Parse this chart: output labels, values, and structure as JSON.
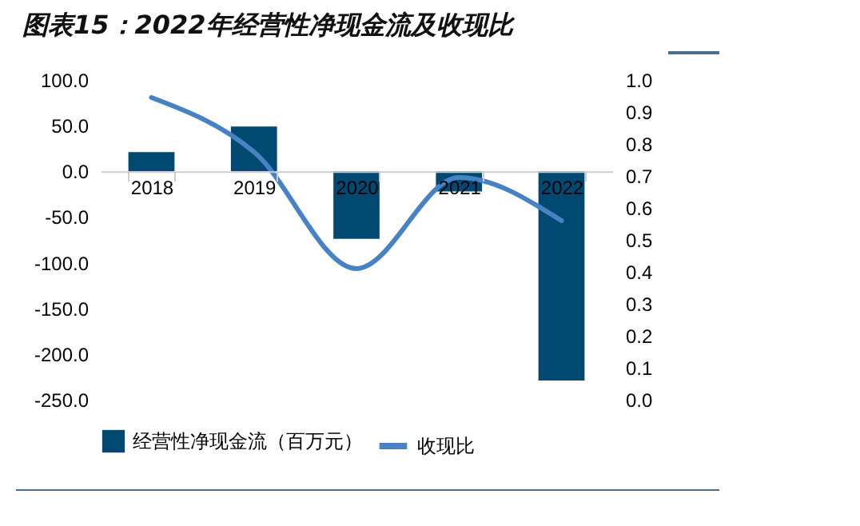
{
  "chart_data": {
    "type": "bar",
    "title": "图表15：2022年经营性净现金流及收现比",
    "categories": [
      "2018",
      "2019",
      "2020",
      "2021",
      "2022"
    ],
    "series": [
      {
        "name": "经营性净现金流（百万元）",
        "color": "#004a72",
        "values": [
          21,
          49,
          -74,
          -22,
          -229
        ]
      },
      {
        "name": "收现比",
        "type": "line",
        "axis": "y2",
        "color": "#4682c4",
        "values": [
          0.945,
          0.775,
          0.41,
          0.695,
          0.56
        ]
      }
    ],
    "ylim": [
      -250,
      100
    ],
    "yticks": [
      {
        "value": -250,
        "label": "-250.0"
      },
      {
        "value": -200,
        "label": "-200.0"
      },
      {
        "value": -150,
        "label": "-150.0"
      },
      {
        "value": -100,
        "label": "-100.0"
      },
      {
        "value": -50,
        "label": "-50.0"
      },
      {
        "value": 0,
        "label": "0.0"
      },
      {
        "value": 50,
        "label": "50.0"
      },
      {
        "value": 100,
        "label": "100.0"
      }
    ],
    "y2lim": [
      0,
      1
    ],
    "y2ticks": [
      {
        "value": 0,
        "label": "0.0"
      },
      {
        "value": 0.1,
        "label": "0.1"
      },
      {
        "value": 0.2,
        "label": "0.2"
      },
      {
        "value": 0.3,
        "label": "0.3"
      },
      {
        "value": 0.4,
        "label": "0.4"
      },
      {
        "value": 0.5,
        "label": "0.5"
      },
      {
        "value": 0.6,
        "label": "0.6"
      },
      {
        "value": 0.7,
        "label": "0.7"
      },
      {
        "value": 0.8,
        "label": "0.8"
      },
      {
        "value": 0.9,
        "label": "0.9"
      },
      {
        "value": 1,
        "label": "1.0"
      }
    ],
    "grid": false,
    "legend": "bottom"
  }
}
